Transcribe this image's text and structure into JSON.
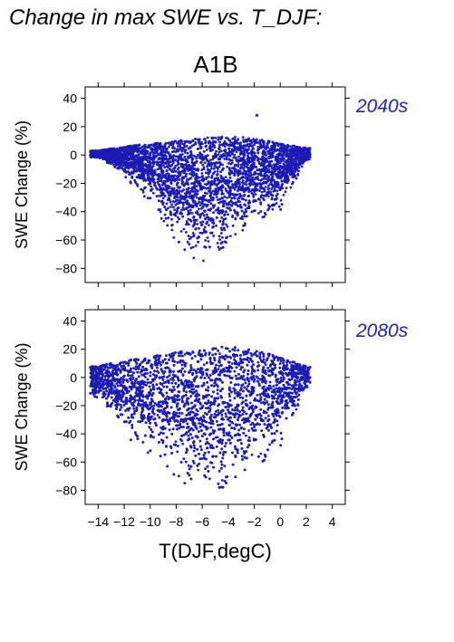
{
  "title": "Change in max SWE vs. T_DJF:",
  "scenario": "A1B",
  "colors": {
    "points": "#1c1cb4",
    "period_label": "#2323aa"
  },
  "chart_data": [
    {
      "type": "scatter",
      "period": "2040s",
      "ylabel": "SWE Change (%)",
      "xlim": [
        -15,
        5
      ],
      "ylim": [
        -90,
        48
      ],
      "yticks": [
        40,
        20,
        0,
        -20,
        -40,
        -60,
        -80
      ],
      "envelope": [
        {
          "x": -14,
          "lo": -2,
          "hi": 3
        },
        {
          "x": -12,
          "lo": -15,
          "hi": 6
        },
        {
          "x": -10,
          "lo": -35,
          "hi": 8
        },
        {
          "x": -8,
          "lo": -65,
          "hi": 10
        },
        {
          "x": -6,
          "lo": -78,
          "hi": 12
        },
        {
          "x": -4,
          "lo": -68,
          "hi": 13
        },
        {
          "x": -2,
          "lo": -50,
          "hi": 12
        },
        {
          "x": 0,
          "lo": -40,
          "hi": 8
        },
        {
          "x": 2,
          "lo": -5,
          "hi": 5
        }
      ],
      "outliers": [
        {
          "x": -1.8,
          "y": 28
        }
      ],
      "grid": false
    },
    {
      "type": "scatter",
      "period": "2080s",
      "ylabel": "SWE Change (%)",
      "xlabel": "T(DJF,degC)",
      "xlim": [
        -15,
        5
      ],
      "ylim": [
        -90,
        48
      ],
      "xticks": [
        -14,
        -12,
        -10,
        -8,
        -6,
        -4,
        -2,
        0,
        2,
        4
      ],
      "yticks": [
        40,
        20,
        0,
        -20,
        -40,
        -60,
        -80
      ],
      "envelope": [
        {
          "x": -14,
          "lo": -15,
          "hi": 8
        },
        {
          "x": -12,
          "lo": -40,
          "hi": 12
        },
        {
          "x": -10,
          "lo": -60,
          "hi": 15
        },
        {
          "x": -8,
          "lo": -75,
          "hi": 18
        },
        {
          "x": -6,
          "lo": -84,
          "hi": 20
        },
        {
          "x": -4,
          "lo": -84,
          "hi": 22
        },
        {
          "x": -2,
          "lo": -70,
          "hi": 20
        },
        {
          "x": 0,
          "lo": -50,
          "hi": 14
        },
        {
          "x": 2,
          "lo": -10,
          "hi": 8
        }
      ],
      "outliers": [],
      "grid": false
    }
  ]
}
